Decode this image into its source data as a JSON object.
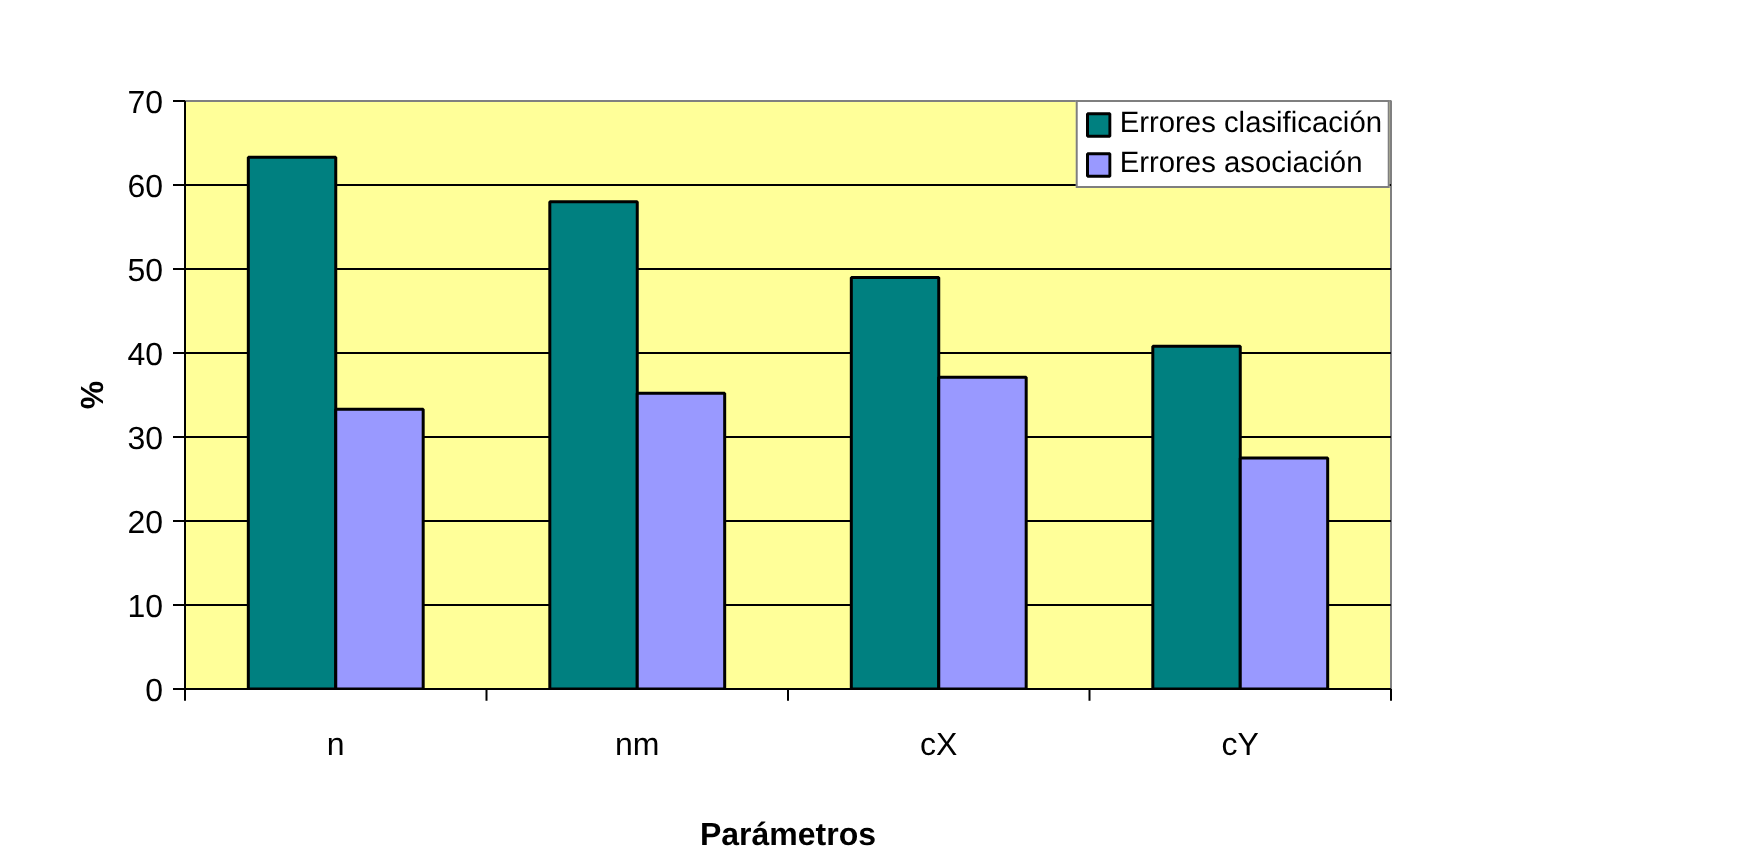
{
  "chart_data": {
    "type": "bar",
    "xlabel": "Parámetros",
    "ylabel": "%",
    "categories": [
      "n",
      "nm",
      "cX",
      "cY"
    ],
    "series": [
      {
        "name": "Errores clasificación",
        "color": "#008080",
        "values": [
          63.3,
          58.0,
          49.0,
          40.8
        ]
      },
      {
        "name": "Errores asociación",
        "color": "#9999ff",
        "values": [
          33.3,
          35.2,
          37.1,
          27.5
        ]
      }
    ],
    "ylim": [
      0,
      70
    ],
    "yticks": [
      0,
      10,
      20,
      30,
      40,
      50,
      60,
      70
    ],
    "grid": "y",
    "legend": "top right"
  }
}
